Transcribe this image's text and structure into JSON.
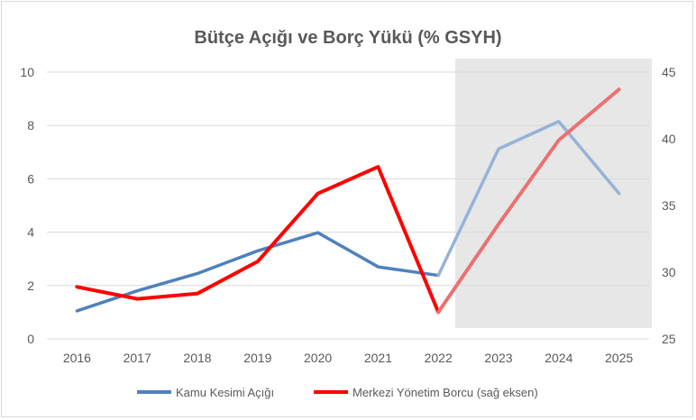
{
  "chart_data": {
    "type": "line",
    "title": "Bütçe Açığı ve Borç Yükü (% GSYH)",
    "xlabel": "",
    "ylabel": "",
    "x": [
      "2016",
      "2017",
      "2018",
      "2019",
      "2020",
      "2021",
      "2022",
      "2023",
      "2024",
      "2025"
    ],
    "ylim_left": [
      0,
      10
    ],
    "yticks_left": [
      0,
      2,
      4,
      6,
      8,
      10
    ],
    "ylim_right": [
      25,
      45
    ],
    "yticks_right": [
      25,
      30,
      35,
      40,
      45
    ],
    "grid": true,
    "legend_position": "bottom",
    "shaded_region": {
      "from": "2022",
      "to": "2025",
      "color": "#e7e7e7"
    },
    "series": [
      {
        "name": "Kamu Kesimi Açığı",
        "axis": "left",
        "color": "#4f81bd",
        "forecast_color": "#95b3d7",
        "values": [
          1.05,
          1.8,
          2.45,
          3.3,
          3.98,
          2.7,
          2.38,
          7.12,
          8.15,
          5.45
        ]
      },
      {
        "name": "Merkezi Yönetim Borcu (sağ eksen)",
        "axis": "right",
        "color": "#ff0000",
        "forecast_color": "#ed7070",
        "values": [
          28.9,
          28.0,
          28.4,
          30.8,
          35.9,
          37.9,
          27.0,
          33.6,
          39.9,
          43.7
        ]
      }
    ]
  }
}
